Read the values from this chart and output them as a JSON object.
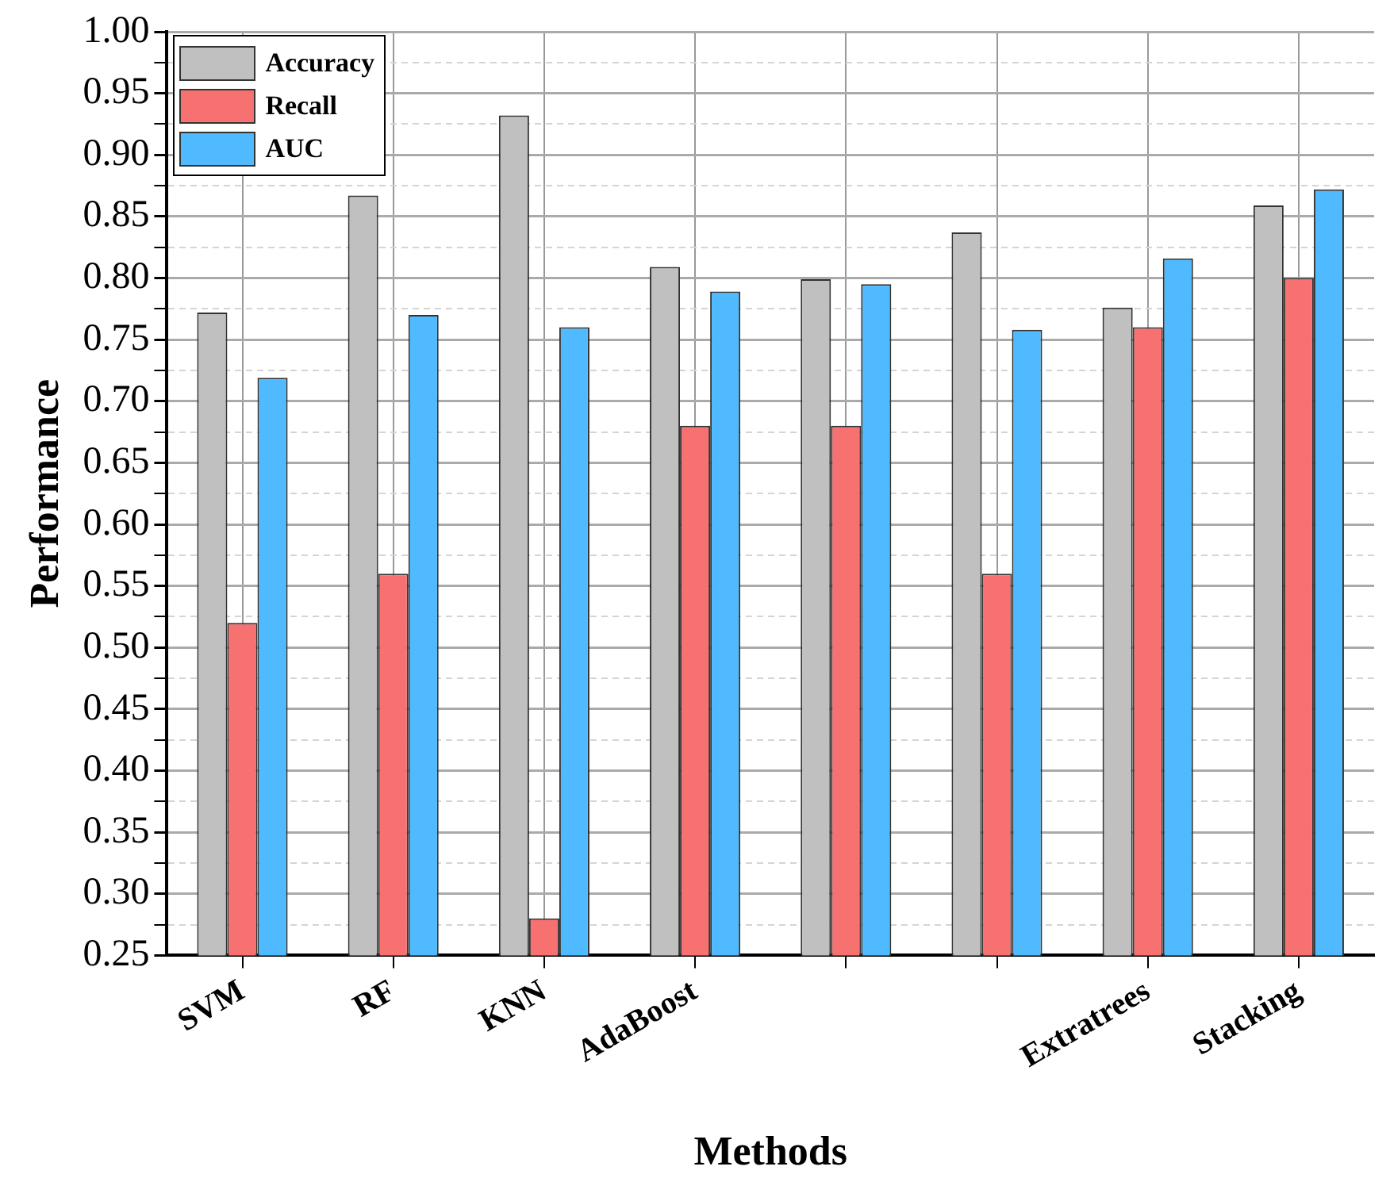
{
  "chart_data": {
    "type": "bar",
    "xlabel": "Methods",
    "ylabel": "Performance",
    "categories": [
      "SVM",
      "RF",
      "KNN",
      "AdaBoost",
      null,
      null,
      "Extratrees",
      "Stacking"
    ],
    "series": [
      {
        "name": "Accuracy",
        "color": "#c0c0c0",
        "values": [
          0.772,
          0.867,
          0.932,
          0.809,
          0.799,
          0.837,
          0.776,
          0.859
        ]
      },
      {
        "name": "Recall",
        "color": "#f87171",
        "values": [
          0.52,
          0.56,
          0.28,
          0.68,
          0.68,
          0.56,
          0.76,
          0.8
        ]
      },
      {
        "name": "AUC",
        "color": "#4fbaff",
        "values": [
          0.719,
          0.77,
          0.76,
          0.789,
          0.795,
          0.758,
          0.816,
          0.872
        ]
      }
    ],
    "ylim": [
      0.25,
      1.0
    ],
    "yticks": [
      0.25,
      {
        "value": 0.275,
        "label": null
      },
      {
        "value": 0.3,
        "label": "0.30"
      },
      {
        "value": 0.325,
        "label": null
      },
      0.35,
      {
        "value": 0.375,
        "label": null
      },
      {
        "value": 0.4,
        "label": "0.40"
      },
      {
        "value": 0.425,
        "label": null
      },
      0.45,
      {
        "value": 0.475,
        "label": null
      },
      {
        "value": 0.5,
        "label": "0.50"
      },
      {
        "value": 0.525,
        "label": null
      },
      0.55,
      {
        "value": 0.575,
        "label": null
      },
      {
        "value": 0.6,
        "label": "0.60"
      },
      {
        "value": 0.625,
        "label": null
      },
      0.65,
      {
        "value": 0.675,
        "label": null
      },
      {
        "value": 0.7,
        "label": "0.70"
      },
      {
        "value": 0.725,
        "label": null
      },
      0.75,
      {
        "value": 0.775,
        "label": null
      },
      {
        "value": 0.8,
        "label": "0.80"
      },
      {
        "value": 0.825,
        "label": null
      },
      0.85,
      {
        "value": 0.875,
        "label": null
      },
      {
        "value": 0.9,
        "label": "0.90"
      },
      {
        "value": 0.925,
        "label": null
      },
      0.95,
      {
        "value": 0.975,
        "label": null
      },
      {
        "value": 1.0,
        "label": "1.00"
      }
    ],
    "grid": true,
    "legend": "top left"
  }
}
